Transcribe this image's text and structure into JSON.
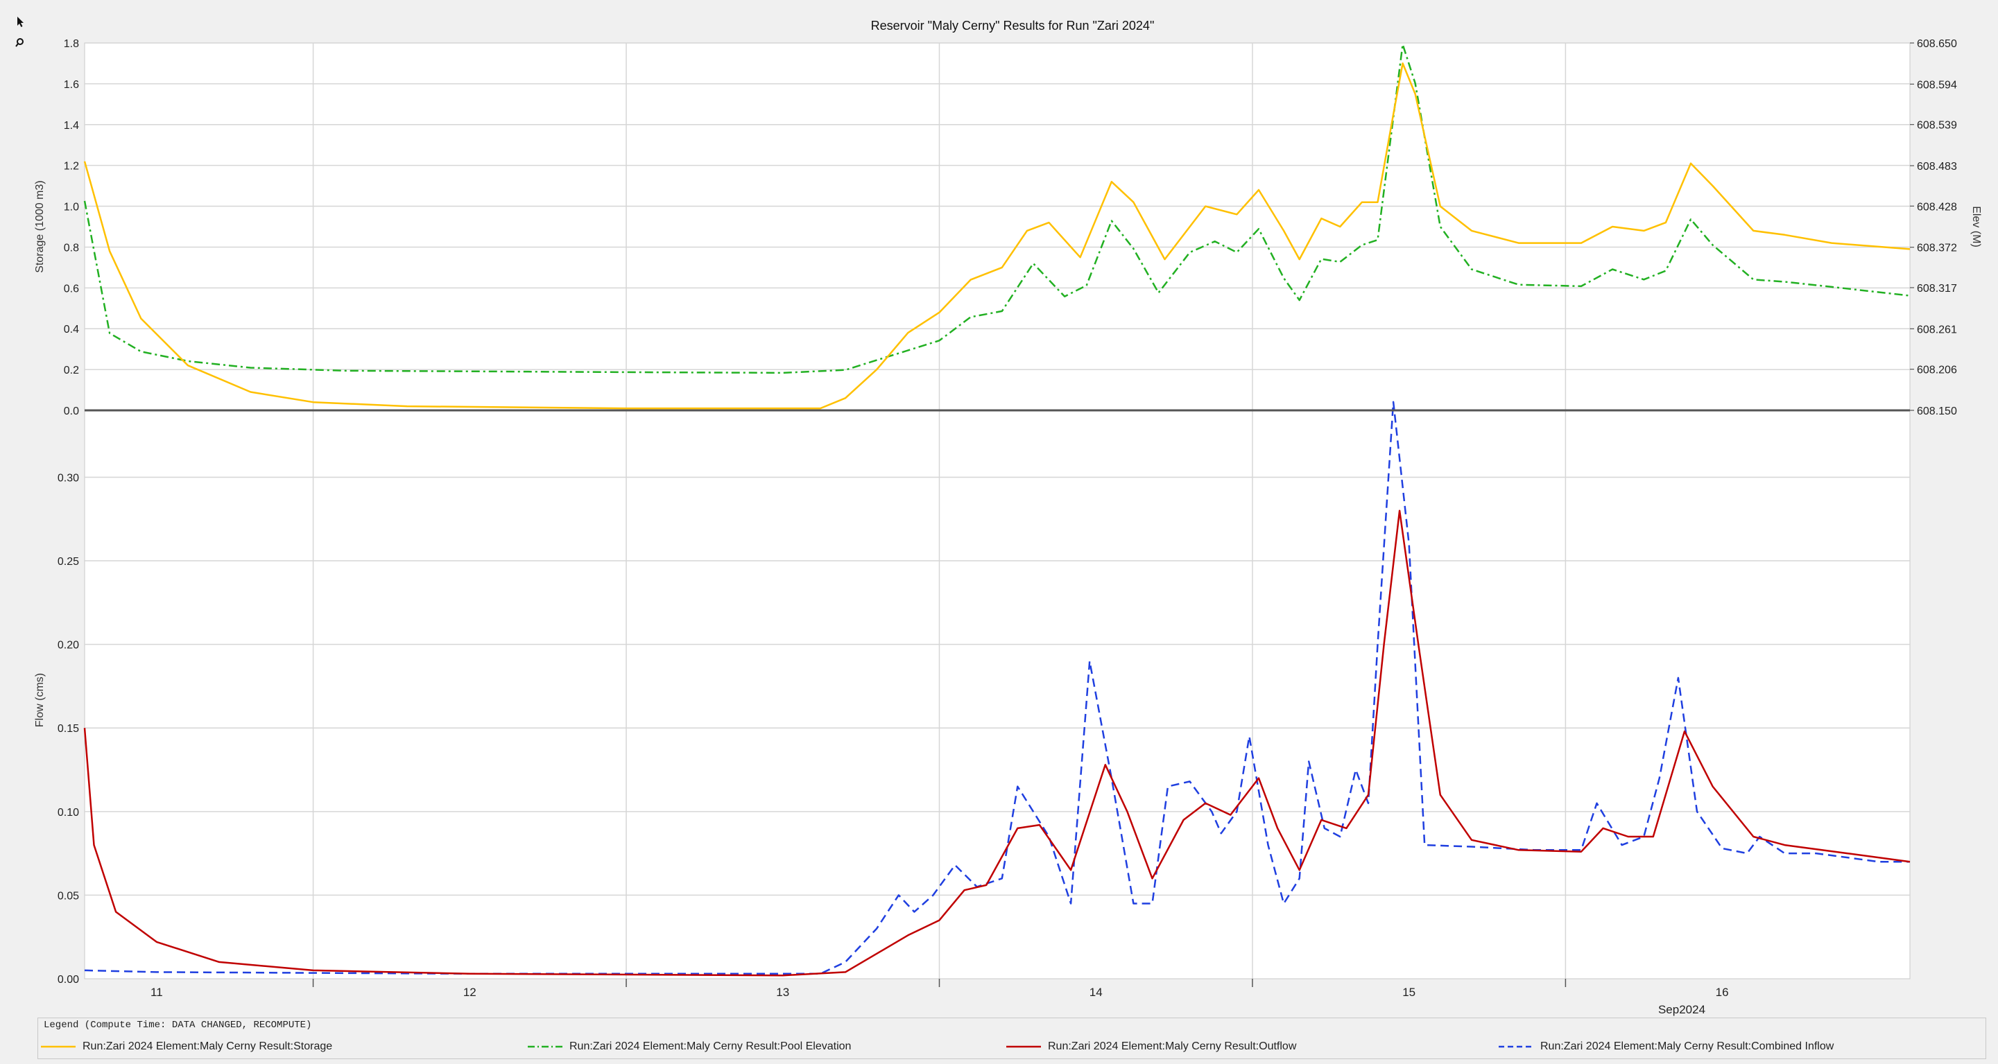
{
  "chart_data": [
    {
      "type": "line",
      "title": "Reservoir \"Maly Cerny\" Results for Run \"Zari 2024\"",
      "ylabel": "Storage (1000 m3)",
      "y2label": "Elev (M)",
      "ylim": [
        0,
        1.8
      ],
      "y2lim": [
        608.15,
        608.65
      ],
      "yticks": [
        "0.0",
        "0.2",
        "0.4",
        "0.6",
        "0.8",
        "1.0",
        "1.2",
        "1.4",
        "1.6",
        "1.8"
      ],
      "y2ticks": [
        "608.150",
        "608.206",
        "608.261",
        "608.317",
        "608.372",
        "608.428",
        "608.483",
        "608.539",
        "608.594",
        "608.650"
      ],
      "grid": true,
      "series": [
        {
          "name": "Run:Zari 2024 Element:Maly Cerny Result:Storage",
          "axis": "left",
          "color": "#ffc000",
          "style": "solid",
          "points": [
            [
              10.77,
              1.22
            ],
            [
              10.85,
              0.78
            ],
            [
              10.95,
              0.45
            ],
            [
              11.1,
              0.22
            ],
            [
              11.3,
              0.09
            ],
            [
              11.5,
              0.04
            ],
            [
              11.8,
              0.02
            ],
            [
              12.5,
              0.01
            ],
            [
              13.0,
              0.01
            ],
            [
              13.12,
              0.01
            ],
            [
              13.2,
              0.06
            ],
            [
              13.3,
              0.2
            ],
            [
              13.4,
              0.38
            ],
            [
              13.5,
              0.48
            ],
            [
              13.6,
              0.64
            ],
            [
              13.7,
              0.7
            ],
            [
              13.78,
              0.88
            ],
            [
              13.85,
              0.92
            ],
            [
              13.95,
              0.75
            ],
            [
              14.05,
              1.12
            ],
            [
              14.12,
              1.02
            ],
            [
              14.22,
              0.74
            ],
            [
              14.35,
              1.0
            ],
            [
              14.45,
              0.96
            ],
            [
              14.52,
              1.08
            ],
            [
              14.6,
              0.88
            ],
            [
              14.65,
              0.74
            ],
            [
              14.72,
              0.94
            ],
            [
              14.78,
              0.9
            ],
            [
              14.85,
              1.02
            ],
            [
              14.9,
              1.02
            ],
            [
              14.95,
              1.45
            ],
            [
              14.98,
              1.7
            ],
            [
              15.02,
              1.55
            ],
            [
              15.1,
              1.0
            ],
            [
              15.2,
              0.88
            ],
            [
              15.35,
              0.82
            ],
            [
              15.55,
              0.82
            ],
            [
              15.65,
              0.9
            ],
            [
              15.75,
              0.88
            ],
            [
              15.82,
              0.92
            ],
            [
              15.9,
              1.21
            ],
            [
              15.97,
              1.1
            ],
            [
              16.1,
              0.88
            ],
            [
              16.2,
              0.86
            ],
            [
              16.35,
              0.82
            ],
            [
              16.6,
              0.79
            ]
          ]
        },
        {
          "name": "Run:Zari 2024 Element:Maly Cerny Result:Pool Elevation",
          "axis": "right",
          "color": "#22b022",
          "style": "dashdot",
          "points": [
            [
              10.77,
              608.435
            ],
            [
              10.85,
              608.255
            ],
            [
              10.95,
              608.23
            ],
            [
              11.1,
              608.217
            ],
            [
              11.3,
              608.208
            ],
            [
              11.6,
              608.204
            ],
            [
              12.5,
              608.202
            ],
            [
              13.0,
              608.201
            ],
            [
              13.2,
              608.205
            ],
            [
              13.35,
              608.225
            ],
            [
              13.5,
              608.245
            ],
            [
              13.6,
              608.277
            ],
            [
              13.7,
              608.285
            ],
            [
              13.8,
              608.35
            ],
            [
              13.9,
              608.305
            ],
            [
              13.97,
              608.32
            ],
            [
              14.05,
              608.408
            ],
            [
              14.12,
              608.37
            ],
            [
              14.2,
              608.31
            ],
            [
              14.3,
              608.365
            ],
            [
              14.38,
              608.38
            ],
            [
              14.45,
              608.365
            ],
            [
              14.52,
              608.397
            ],
            [
              14.6,
              608.33
            ],
            [
              14.65,
              608.3
            ],
            [
              14.72,
              608.356
            ],
            [
              14.78,
              608.352
            ],
            [
              14.85,
              608.375
            ],
            [
              14.9,
              608.382
            ],
            [
              14.98,
              608.648
            ],
            [
              15.02,
              608.595
            ],
            [
              15.1,
              608.4
            ],
            [
              15.2,
              608.342
            ],
            [
              15.35,
              608.321
            ],
            [
              15.55,
              608.319
            ],
            [
              15.65,
              608.342
            ],
            [
              15.75,
              608.328
            ],
            [
              15.82,
              608.34
            ],
            [
              15.9,
              608.41
            ],
            [
              15.97,
              608.375
            ],
            [
              16.1,
              608.328
            ],
            [
              16.2,
              608.325
            ],
            [
              16.35,
              608.318
            ],
            [
              16.6,
              608.306
            ]
          ]
        }
      ]
    },
    {
      "type": "line",
      "ylabel": "Flow (cms)",
      "ylim": [
        0,
        0.34
      ],
      "yticks": [
        "0.00",
        "0.05",
        "0.10",
        "0.15",
        "0.20",
        "0.25",
        "0.30"
      ],
      "xlim": [
        10.77,
        16.6
      ],
      "x_ticks": [
        "11",
        "12",
        "13",
        "14",
        "15",
        "16"
      ],
      "x_period_label": "Sep2024",
      "grid": true,
      "series": [
        {
          "name": "Run:Zari 2024 Element:Maly Cerny Result:Outflow",
          "color": "#c00000",
          "style": "solid",
          "points": [
            [
              10.77,
              0.15
            ],
            [
              10.8,
              0.08
            ],
            [
              10.87,
              0.04
            ],
            [
              11.0,
              0.022
            ],
            [
              11.2,
              0.01
            ],
            [
              11.5,
              0.005
            ],
            [
              12.0,
              0.003
            ],
            [
              13.0,
              0.002
            ],
            [
              13.2,
              0.004
            ],
            [
              13.3,
              0.015
            ],
            [
              13.4,
              0.026
            ],
            [
              13.5,
              0.035
            ],
            [
              13.58,
              0.053
            ],
            [
              13.65,
              0.056
            ],
            [
              13.75,
              0.09
            ],
            [
              13.82,
              0.092
            ],
            [
              13.92,
              0.065
            ],
            [
              14.03,
              0.128
            ],
            [
              14.1,
              0.1
            ],
            [
              14.18,
              0.06
            ],
            [
              14.28,
              0.095
            ],
            [
              14.35,
              0.105
            ],
            [
              14.43,
              0.098
            ],
            [
              14.52,
              0.12
            ],
            [
              14.58,
              0.09
            ],
            [
              14.65,
              0.065
            ],
            [
              14.72,
              0.095
            ],
            [
              14.8,
              0.09
            ],
            [
              14.87,
              0.11
            ],
            [
              14.92,
              0.2
            ],
            [
              14.97,
              0.28
            ],
            [
              15.03,
              0.2
            ],
            [
              15.1,
              0.11
            ],
            [
              15.2,
              0.083
            ],
            [
              15.35,
              0.077
            ],
            [
              15.55,
              0.076
            ],
            [
              15.62,
              0.09
            ],
            [
              15.7,
              0.085
            ],
            [
              15.78,
              0.085
            ],
            [
              15.88,
              0.148
            ],
            [
              15.97,
              0.115
            ],
            [
              16.1,
              0.085
            ],
            [
              16.2,
              0.08
            ],
            [
              16.4,
              0.075
            ],
            [
              16.6,
              0.07
            ]
          ]
        },
        {
          "name": "Run:Zari 2024 Element:Maly Cerny Result:Combined Inflow",
          "color": "#1f3fe0",
          "style": "dashed",
          "points": [
            [
              10.77,
              0.005
            ],
            [
              11.0,
              0.004
            ],
            [
              12.0,
              0.003
            ],
            [
              13.0,
              0.003
            ],
            [
              13.12,
              0.003
            ],
            [
              13.2,
              0.01
            ],
            [
              13.3,
              0.03
            ],
            [
              13.37,
              0.05
            ],
            [
              13.42,
              0.04
            ],
            [
              13.48,
              0.05
            ],
            [
              13.55,
              0.068
            ],
            [
              13.62,
              0.055
            ],
            [
              13.7,
              0.06
            ],
            [
              13.75,
              0.115
            ],
            [
              13.85,
              0.085
            ],
            [
              13.92,
              0.045
            ],
            [
              13.98,
              0.19
            ],
            [
              14.05,
              0.12
            ],
            [
              14.12,
              0.045
            ],
            [
              14.18,
              0.045
            ],
            [
              14.23,
              0.115
            ],
            [
              14.3,
              0.118
            ],
            [
              14.37,
              0.1
            ],
            [
              14.4,
              0.087
            ],
            [
              14.45,
              0.1
            ],
            [
              14.49,
              0.145
            ],
            [
              14.55,
              0.08
            ],
            [
              14.6,
              0.045
            ],
            [
              14.65,
              0.06
            ],
            [
              14.68,
              0.13
            ],
            [
              14.73,
              0.09
            ],
            [
              14.78,
              0.085
            ],
            [
              14.83,
              0.125
            ],
            [
              14.87,
              0.105
            ],
            [
              14.9,
              0.2
            ],
            [
              14.95,
              0.345
            ],
            [
              15.0,
              0.26
            ],
            [
              15.05,
              0.08
            ],
            [
              15.2,
              0.079
            ],
            [
              15.4,
              0.077
            ],
            [
              15.55,
              0.077
            ],
            [
              15.6,
              0.105
            ],
            [
              15.68,
              0.08
            ],
            [
              15.75,
              0.085
            ],
            [
              15.8,
              0.12
            ],
            [
              15.86,
              0.18
            ],
            [
              15.92,
              0.1
            ],
            [
              16.0,
              0.078
            ],
            [
              16.08,
              0.075
            ],
            [
              16.12,
              0.085
            ],
            [
              16.2,
              0.075
            ],
            [
              16.3,
              0.075
            ],
            [
              16.5,
              0.07
            ],
            [
              16.6,
              0.07
            ]
          ]
        }
      ]
    }
  ],
  "legend": {
    "heading": "Legend (Compute Time: DATA CHANGED, RECOMPUTE)"
  },
  "toolbar": {
    "pointer_icon": "arrow-pointer-icon",
    "zoom_icon": "magnifier-icon"
  }
}
